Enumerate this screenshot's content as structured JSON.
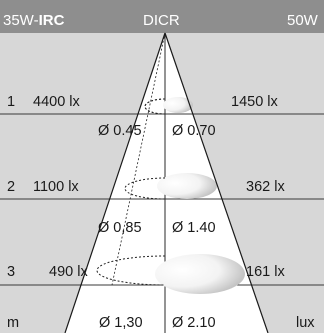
{
  "header": {
    "lamp_prefix": "35W-",
    "lamp_bold": "IRC",
    "reflector": "DICR",
    "compare": "50W"
  },
  "rows": [
    {
      "index": "1",
      "lux_irc": "4400 lx",
      "lux_ref": "1450 lx",
      "dia_irc": "Ø 0.45",
      "dia_ref": "Ø 0.70"
    },
    {
      "index": "2",
      "lux_irc": "1100 lx",
      "lux_ref": "362 lx",
      "dia_irc": "Ø 0,85",
      "dia_ref": "Ø 1.40"
    },
    {
      "index": "3",
      "lux_irc": "490 lx",
      "lux_ref": "161 lx",
      "dia_irc": "Ø 1,30",
      "dia_ref": "Ø 2.10"
    }
  ],
  "footer": {
    "unit_distance": "m",
    "unit_illuminance": "lux"
  },
  "colors": {
    "header_bg": "#8e8e8e",
    "panel_bg": "#d7d7d7",
    "beam_fill": "#ffffff",
    "lines": "#1a1a1a"
  }
}
